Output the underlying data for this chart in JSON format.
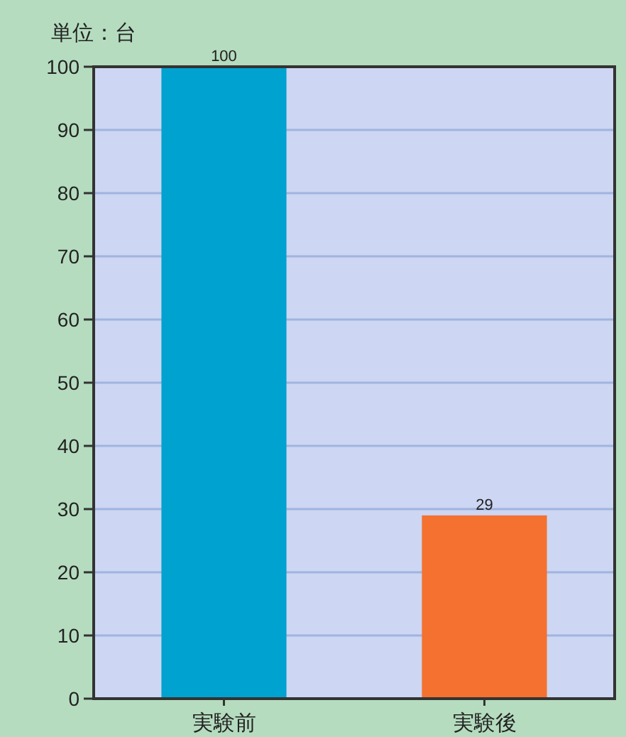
{
  "chart_data": {
    "type": "bar",
    "annotations": [
      "単位：台"
    ],
    "categories": [
      "実験前",
      "実験後"
    ],
    "values": [
      100,
      29
    ],
    "colors": [
      "#00a2d0",
      "#f47130"
    ],
    "ylim": [
      0,
      100
    ],
    "yticks": [
      0,
      10,
      20,
      30,
      40,
      50,
      60,
      70,
      80,
      90,
      100
    ],
    "grid": "y",
    "data_labels": true
  }
}
